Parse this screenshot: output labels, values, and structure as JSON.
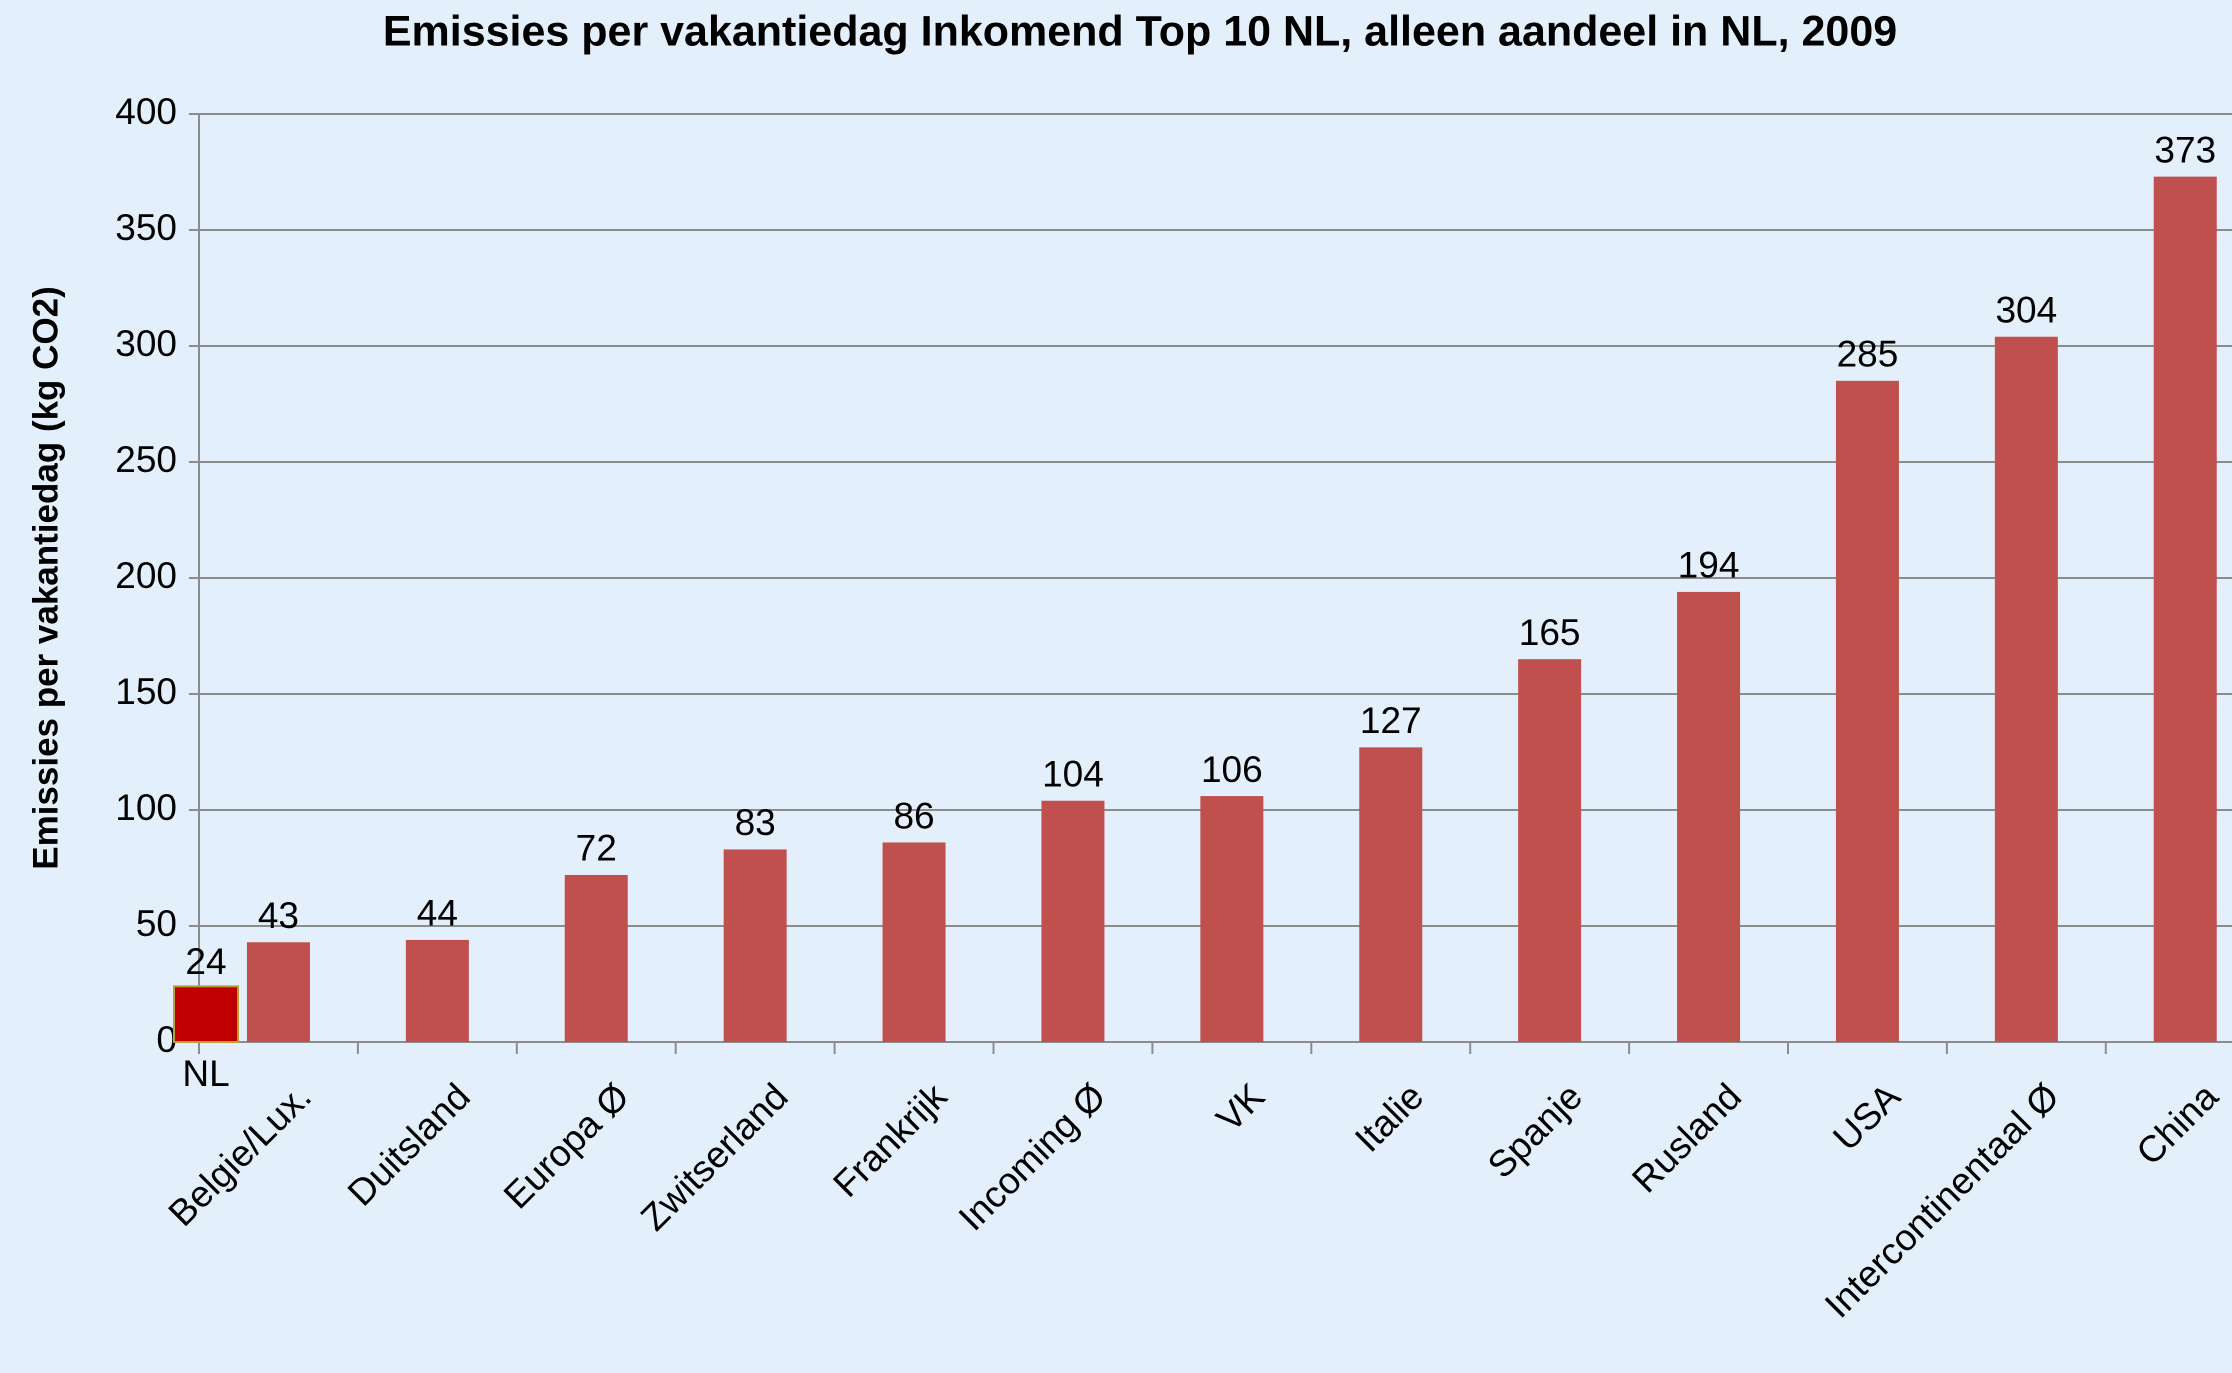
{
  "chart_data": {
    "type": "bar",
    "title": "Emissies per vakantiedag Inkomend Top 10 NL, alleen aandeel in NL, 2009",
    "y_label": "Emissies per vakantiedag (kg CO2)",
    "categories": [
      "Belgie/Lux.",
      "Duitsland",
      "Europa Ø",
      "Zwitserland",
      "Frankrijk",
      "Incoming Ø",
      "VK",
      "Italie",
      "Spanje",
      "Rusland",
      "USA",
      "Intercontinentaal Ø",
      "China"
    ],
    "values": [
      43,
      44,
      72,
      83,
      86,
      104,
      106,
      127,
      165,
      194,
      285,
      304,
      373
    ],
    "color": "#c0504d",
    "reference": {
      "label": "NL",
      "value": 24,
      "color": "#c00000"
    },
    "ylim": [
      0,
      400
    ],
    "yticks": [
      0,
      50,
      100,
      150,
      200,
      250,
      300,
      350,
      400
    ],
    "grid": true
  }
}
